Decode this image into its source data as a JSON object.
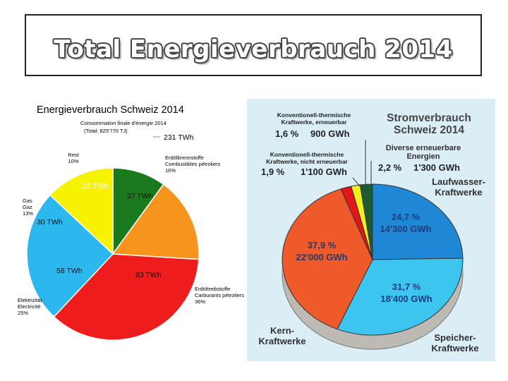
{
  "page_title": "Total Energieverbrauch 2014",
  "chart_data": [
    {
      "type": "pie",
      "title": "Energieverbrauch Schweiz 2014",
      "subtitle": "Consommation finale d'énergie 2014",
      "total_note": "(Total: 825'770 TJ)",
      "total_value": "231 TWh",
      "series": [
        {
          "label_lines": [
            "Rest",
            "10%"
          ],
          "value_label": "23 TWh",
          "value": 23,
          "percent": 10,
          "color": "#1a7a1e"
        },
        {
          "label_lines": [
            "Erdölbrennstoffe",
            "Combustibles pétroliers",
            "16%"
          ],
          "value_label": "37 TWh",
          "value": 37,
          "percent": 16,
          "color": "#f7941d"
        },
        {
          "label_lines": [
            "Erdöltreibstoffe",
            "Carburants pétroliers",
            "36%"
          ],
          "value_label": "83 TWh",
          "value": 83,
          "percent": 36,
          "color": "#ee1c1c"
        },
        {
          "label_lines": [
            "Elektrizität",
            "Electricité",
            "25%"
          ],
          "value_label": "58 TWh",
          "value": 58,
          "percent": 25,
          "color": "#2cb8ee"
        },
        {
          "label_lines": [
            "Gas",
            "Gaz",
            "13%"
          ],
          "value_label": "30 TWh",
          "value": 30,
          "percent": 13,
          "color": "#f7f200"
        }
      ]
    },
    {
      "type": "pie",
      "title_lines": [
        "Stromverbrauch",
        "Schweiz 2014"
      ],
      "series": [
        {
          "name_lines": [
            "Laufwasser-",
            "Kraftwerke"
          ],
          "percent_label": "24,7 %",
          "value_label": "14'300 GWh",
          "percent": 24.7,
          "value": 14300,
          "color": "#1e88d6"
        },
        {
          "name_lines": [
            "Speicher-",
            "Kraftwerke"
          ],
          "percent_label": "31,7 %",
          "value_label": "18'400 GWh",
          "percent": 31.7,
          "value": 18400,
          "color": "#3cc6ef"
        },
        {
          "name_lines": [
            "Kern-",
            "Kraftwerke"
          ],
          "percent_label": "37,9 %",
          "value_label": "22'000 GWh",
          "percent": 37.9,
          "value": 22000,
          "color": "#ee5a2a"
        },
        {
          "name_lines": [
            "Konventionell-thermische",
            "Kraftwerke, nicht erneuerbar"
          ],
          "percent_label": "1,9 %",
          "value_label": "1'100 GWh",
          "percent": 1.9,
          "value": 1100,
          "color": "#e5141b"
        },
        {
          "name_lines": [
            "Konventionell-thermische",
            "Kraftwerke, erneuerbar"
          ],
          "percent_label": "1,6 %",
          "value_label": "900 GWh",
          "percent": 1.6,
          "value": 900,
          "color": "#f3ee22"
        },
        {
          "name_lines": [
            "Diverse erneuerbare",
            "Energien"
          ],
          "percent_label": "2,2 %",
          "value_label": "1'300 GWh",
          "percent": 2.2,
          "value": 1300,
          "color": "#1f5a33"
        }
      ]
    }
  ]
}
